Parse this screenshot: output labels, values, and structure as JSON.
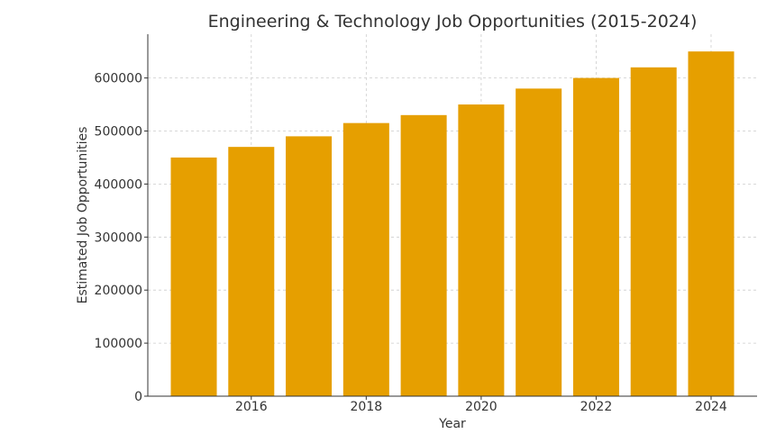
{
  "chart_data": {
    "type": "bar",
    "title": "Engineering & Technology Job Opportunities (2015-2024)",
    "xlabel": "Year",
    "ylabel": "Estimated Job Opportunities",
    "categories": [
      2015,
      2016,
      2017,
      2018,
      2019,
      2020,
      2021,
      2022,
      2023,
      2024
    ],
    "values": [
      450000,
      470000,
      490000,
      515000,
      530000,
      550000,
      580000,
      600000,
      620000,
      650000
    ],
    "x_ticks": [
      2016,
      2018,
      2020,
      2022,
      2024
    ],
    "y_ticks": [
      0,
      100000,
      200000,
      300000,
      400000,
      500000,
      600000
    ],
    "xlim": [
      2014.2,
      2024.8
    ],
    "ylim": [
      0,
      682500
    ],
    "grid": true,
    "bar_color": "#E69F00"
  }
}
